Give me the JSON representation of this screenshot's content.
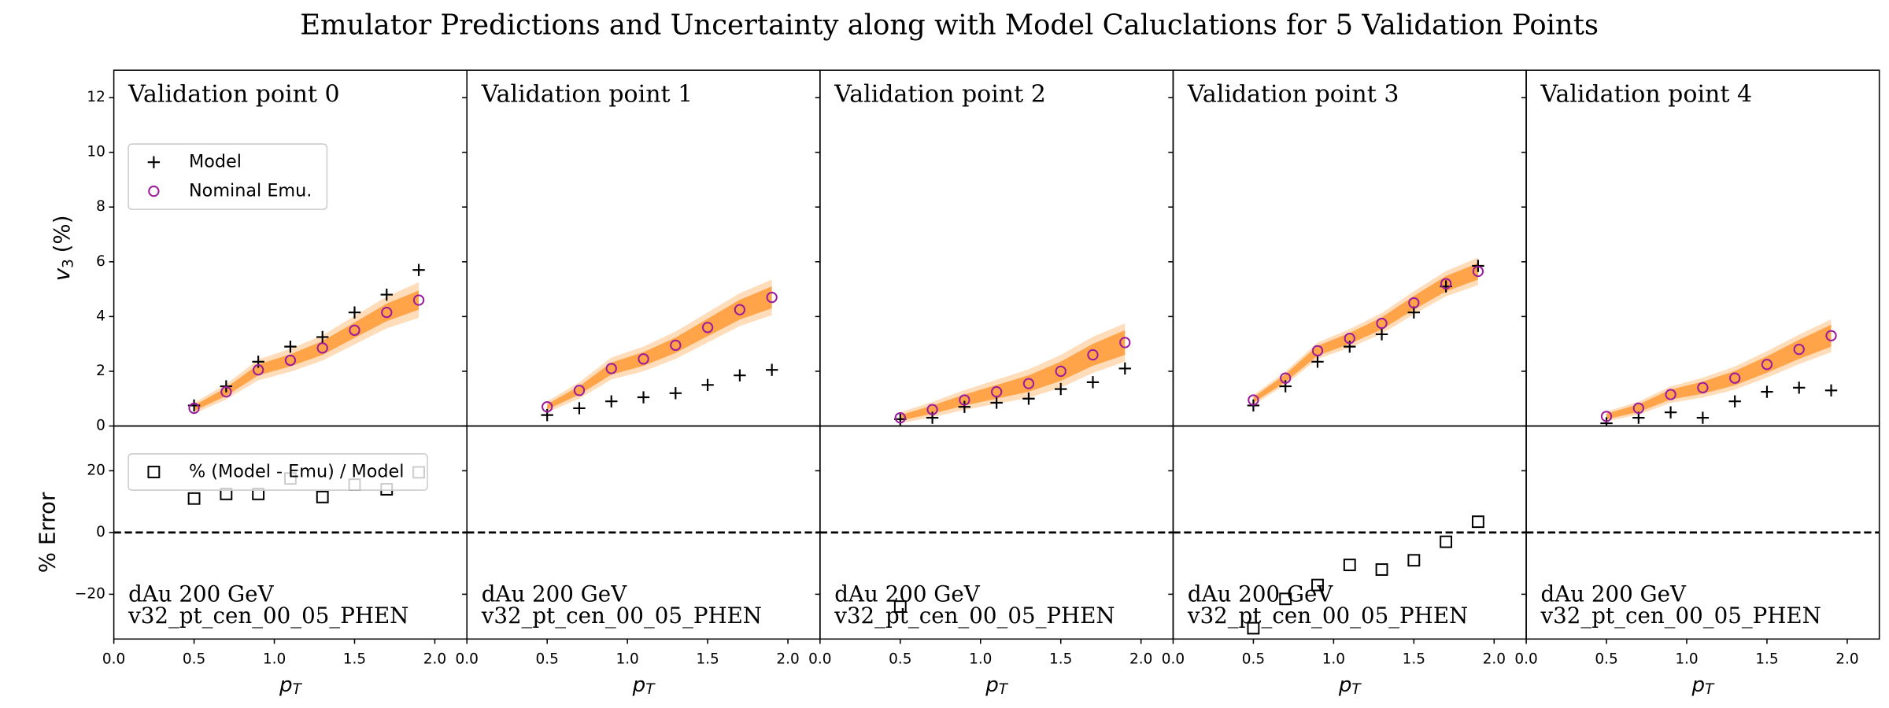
{
  "chart_data": {
    "type": "multi-panel",
    "title": "Emulator Predictions and Uncertainty along with Model Caluclations for 5 Validation Points",
    "xlim": [
      0,
      2.2
    ],
    "xticks": [
      {
        "value": 0,
        "label": "0.0"
      },
      0.5,
      {
        "value": 1,
        "label": "1.0"
      },
      1.5,
      {
        "value": 2,
        "label": "2.0"
      }
    ],
    "xlabel": {
      "symbol": "p",
      "subscript": "T"
    },
    "upper": {
      "ylim": [
        0,
        13
      ],
      "yticks": [
        0,
        2,
        4,
        6,
        8,
        10,
        12
      ],
      "ylabel": {
        "symbol": "v",
        "subscript": "3",
        "unit": "(%)"
      }
    },
    "lower": {
      "ylim": [
        -34.5,
        34.5
      ],
      "yticks": [
        {
          "value": -20,
          "label": "−20"
        },
        0,
        20
      ],
      "ylabel": "% Error",
      "reference_line": 0
    },
    "panels": [
      {
        "title": "Validation point 0",
        "x": [
          0.5,
          0.7,
          0.9,
          1.1,
          1.3,
          1.5,
          1.7,
          1.9
        ],
        "annotation": [
          "dAu 200 GeV",
          "v32_pt_cen_00_05_PHEN"
        ],
        "upper": {
          "type": "band",
          "legend": "upper left",
          "band_color": "#ff8c1a",
          "band_inner": [
            0.1,
            0.15,
            0.2,
            0.22,
            0.25,
            0.28,
            0.32,
            0.35
          ],
          "band_outer": [
            0.2,
            0.28,
            0.38,
            0.42,
            0.46,
            0.52,
            0.58,
            0.65
          ],
          "series": [
            {
              "name": "Model",
              "color": "#000000",
              "marker": "+",
              "values": [
                0.75,
                1.45,
                2.35,
                2.9,
                3.25,
                4.15,
                4.8,
                5.7
              ]
            },
            {
              "name": "Nominal Emu.",
              "color": "#9c1a9c",
              "marker": "o",
              "values": [
                0.65,
                1.25,
                2.05,
                2.4,
                2.85,
                3.5,
                4.15,
                4.6
              ]
            }
          ]
        },
        "lower": {
          "type": "scatter",
          "legend": "upper left",
          "series": [
            {
              "name": "% (Model - Emu) / Model",
              "color": "#000000",
              "marker": "s",
              "values": [
                11,
                12.5,
                12.5,
                17.5,
                11.5,
                15.5,
                14,
                19.5
              ]
            }
          ]
        }
      },
      {
        "title": "Validation point 1",
        "x": [
          0.5,
          0.7,
          0.9,
          1.1,
          1.3,
          1.5,
          1.7,
          1.9
        ],
        "annotation": [
          "dAu 200 GeV",
          "v32_pt_cen_00_05_PHEN"
        ],
        "upper": {
          "type": "band",
          "band_color": "#ff8c1a",
          "band_inner": [
            0.1,
            0.15,
            0.22,
            0.25,
            0.28,
            0.32,
            0.36,
            0.4
          ],
          "band_outer": [
            0.2,
            0.3,
            0.4,
            0.45,
            0.5,
            0.55,
            0.6,
            0.65
          ],
          "series": [
            {
              "color": "#000000",
              "marker": "+",
              "values": [
                0.4,
                0.65,
                0.9,
                1.05,
                1.2,
                1.5,
                1.85,
                2.05
              ]
            },
            {
              "color": "#9c1a9c",
              "marker": "o",
              "values": [
                0.7,
                1.3,
                2.1,
                2.45,
                2.95,
                3.6,
                4.25,
                4.7
              ]
            }
          ]
        },
        "lower": {
          "type": "scatter",
          "series": [
            {
              "color": "#000000",
              "marker": "s",
              "values": [
                null,
                null,
                null,
                null,
                null,
                null,
                null,
                null
              ]
            }
          ]
        }
      },
      {
        "title": "Validation point 2",
        "x": [
          0.5,
          0.7,
          0.9,
          1.1,
          1.3,
          1.5,
          1.7,
          1.9
        ],
        "annotation": [
          "dAu 200 GeV",
          "v32_pt_cen_00_05_PHEN"
        ],
        "upper": {
          "type": "band",
          "band_color": "#ff8c1a",
          "band_inner": [
            0.1,
            0.15,
            0.2,
            0.25,
            0.3,
            0.35,
            0.4,
            0.45
          ],
          "band_outer": [
            0.2,
            0.28,
            0.36,
            0.44,
            0.52,
            0.6,
            0.66,
            0.7
          ],
          "series": [
            {
              "color": "#000000",
              "marker": "+",
              "values": [
                0.25,
                0.3,
                0.7,
                0.85,
                1.0,
                1.35,
                1.6,
                2.1
              ]
            },
            {
              "color": "#9c1a9c",
              "marker": "o",
              "values": [
                0.3,
                0.6,
                0.95,
                1.25,
                1.55,
                2.0,
                2.6,
                3.05
              ]
            }
          ]
        },
        "lower": {
          "type": "scatter",
          "series": [
            {
              "color": "#000000",
              "marker": "s",
              "values": [
                -24,
                null,
                null,
                null,
                null,
                null,
                null,
                null
              ]
            }
          ]
        }
      },
      {
        "title": "Validation point 3",
        "x": [
          0.5,
          0.7,
          0.9,
          1.1,
          1.3,
          1.5,
          1.7,
          1.9
        ],
        "annotation": [
          "dAu 200 GeV",
          "v32_pt_cen_00_05_PHEN"
        ],
        "upper": {
          "type": "band",
          "band_color": "#ff8c1a",
          "band_inner": [
            0.1,
            0.14,
            0.18,
            0.2,
            0.22,
            0.25,
            0.28,
            0.3
          ],
          "band_outer": [
            0.18,
            0.24,
            0.3,
            0.34,
            0.38,
            0.42,
            0.46,
            0.5
          ],
          "series": [
            {
              "color": "#000000",
              "marker": "+",
              "values": [
                0.75,
                1.45,
                2.35,
                2.9,
                3.35,
                4.15,
                5.1,
                5.85
              ]
            },
            {
              "color": "#9c1a9c",
              "marker": "o",
              "values": [
                0.95,
                1.75,
                2.75,
                3.2,
                3.75,
                4.5,
                5.2,
                5.65
              ]
            }
          ]
        },
        "lower": {
          "type": "scatter",
          "series": [
            {
              "color": "#000000",
              "marker": "s",
              "values": [
                -31,
                -21.5,
                -17,
                -10.5,
                -12,
                -9,
                -3,
                3.5
              ]
            }
          ]
        }
      },
      {
        "title": "Validation point 4",
        "x": [
          0.5,
          0.7,
          0.9,
          1.1,
          1.3,
          1.5,
          1.7,
          1.9
        ],
        "annotation": [
          "dAu 200 GeV",
          "v32_pt_cen_00_05_PHEN"
        ],
        "upper": {
          "type": "band",
          "band_color": "#ff8c1a",
          "band_inner": [
            0.1,
            0.14,
            0.18,
            0.22,
            0.26,
            0.3,
            0.35,
            0.4
          ],
          "band_outer": [
            0.18,
            0.24,
            0.3,
            0.36,
            0.42,
            0.48,
            0.54,
            0.6
          ],
          "series": [
            {
              "color": "#000000",
              "marker": "+",
              "values": [
                0.1,
                0.3,
                0.5,
                0.3,
                0.9,
                1.25,
                1.4,
                1.3
              ]
            },
            {
              "color": "#9c1a9c",
              "marker": "o",
              "values": [
                0.35,
                0.65,
                1.15,
                1.4,
                1.75,
                2.25,
                2.8,
                3.3
              ]
            }
          ]
        },
        "lower": {
          "type": "scatter",
          "series": [
            {
              "color": "#000000",
              "marker": "s",
              "values": [
                null,
                null,
                null,
                null,
                null,
                null,
                null,
                null
              ]
            }
          ]
        }
      }
    ]
  }
}
